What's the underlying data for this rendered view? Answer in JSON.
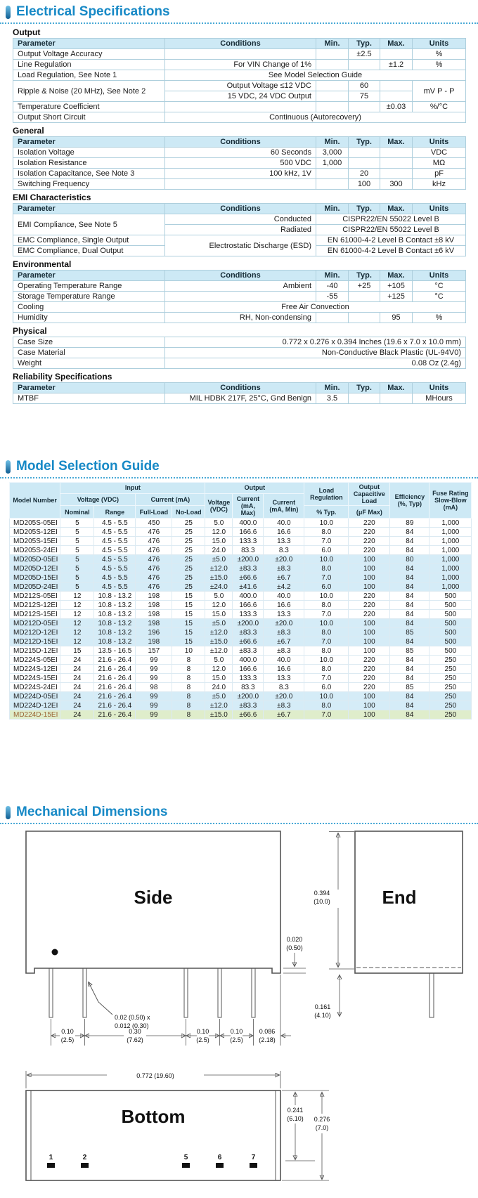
{
  "titles": {
    "electrical": "Electrical Specifications",
    "model_guide": "Model Selection Guide",
    "mechanical": "Mechanical Dimensions"
  },
  "spec_header": {
    "parameter": "Parameter",
    "conditions": "Conditions",
    "min": "Min.",
    "typ": "Typ.",
    "max": "Max.",
    "units": "Units"
  },
  "spec_tables": [
    {
      "label": "Output",
      "header": true,
      "rows": [
        [
          {
            "t": "Output Voltage Accuracy",
            "al": "l"
          },
          {
            "t": "",
            "al": "r"
          },
          {
            "t": "",
            "al": "c"
          },
          {
            "t": "±2.5",
            "al": "c"
          },
          {
            "t": "",
            "al": "c"
          },
          {
            "t": "%",
            "al": "c"
          }
        ],
        [
          {
            "t": "Line Regulation",
            "al": "l"
          },
          {
            "t": "For VIN Change of 1%",
            "al": "r"
          },
          {
            "t": "",
            "al": "c"
          },
          {
            "t": "",
            "al": "c"
          },
          {
            "t": "±1.2",
            "al": "c"
          },
          {
            "t": "%",
            "al": "c"
          }
        ],
        [
          {
            "t": "Load Regulation, See Note 1",
            "al": "l"
          },
          {
            "t": "See Model Selection Guide",
            "cs": 5,
            "al": "c"
          }
        ],
        [
          {
            "t": "Ripple & Noise (20 MHz), See Note 2",
            "rs": 2,
            "al": "l"
          },
          {
            "t": "Output Voltage ≤12 VDC",
            "al": "r"
          },
          {
            "t": "",
            "al": "c"
          },
          {
            "t": "60",
            "al": "c"
          },
          {
            "t": "",
            "al": "c"
          },
          {
            "t": "mV P - P",
            "rs": 2,
            "al": "c"
          }
        ],
        [
          {
            "t": "15 VDC, 24 VDC Output",
            "al": "r"
          },
          {
            "t": "",
            "al": "c"
          },
          {
            "t": "75",
            "al": "c"
          },
          {
            "t": "",
            "al": "c"
          }
        ],
        [
          {
            "t": "Temperature Coefficient",
            "al": "l"
          },
          {
            "t": "",
            "al": "r"
          },
          {
            "t": "",
            "al": "c"
          },
          {
            "t": "",
            "al": "c"
          },
          {
            "t": "±0.03",
            "al": "c"
          },
          {
            "t": "%/°C",
            "al": "c"
          }
        ],
        [
          {
            "t": "Output Short Circuit",
            "al": "l"
          },
          {
            "t": "Continuous (Autorecovery)",
            "cs": 5,
            "al": "c"
          }
        ]
      ]
    },
    {
      "label": "General",
      "header": true,
      "rows": [
        [
          {
            "t": "Isolation Voltage",
            "al": "l"
          },
          {
            "t": "60 Seconds",
            "al": "r"
          },
          {
            "t": "3,000",
            "al": "c"
          },
          {
            "t": "",
            "al": "c"
          },
          {
            "t": "",
            "al": "c"
          },
          {
            "t": "VDC",
            "al": "c"
          }
        ],
        [
          {
            "t": "Isolation Resistance",
            "al": "l"
          },
          {
            "t": "500 VDC",
            "al": "r"
          },
          {
            "t": "1,000",
            "al": "c"
          },
          {
            "t": "",
            "al": "c"
          },
          {
            "t": "",
            "al": "c"
          },
          {
            "t": "MΩ",
            "al": "c"
          }
        ],
        [
          {
            "t": "Isolation Capacitance, See Note 3",
            "al": "l"
          },
          {
            "t": "100 kHz, 1V",
            "al": "r"
          },
          {
            "t": "",
            "al": "c"
          },
          {
            "t": "20",
            "al": "c"
          },
          {
            "t": "",
            "al": "c"
          },
          {
            "t": "pF",
            "al": "c"
          }
        ],
        [
          {
            "t": "Switching Frequency",
            "al": "l"
          },
          {
            "t": "",
            "al": "r"
          },
          {
            "t": "",
            "al": "c"
          },
          {
            "t": "100",
            "al": "c"
          },
          {
            "t": "300",
            "al": "c"
          },
          {
            "t": "kHz",
            "al": "c"
          }
        ]
      ]
    },
    {
      "label": "EMI Characteristics",
      "header": true,
      "rows": [
        [
          {
            "t": "EMI Compliance, See Note 5",
            "rs": 2,
            "al": "l"
          },
          {
            "t": "Conducted",
            "al": "r"
          },
          {
            "t": "CISPR22/EN 55022 Level B",
            "cs": 4,
            "al": "c"
          }
        ],
        [
          {
            "t": "Radiated",
            "al": "r"
          },
          {
            "t": "CISPR22/EN 55022 Level B",
            "cs": 4,
            "al": "c"
          }
        ],
        [
          {
            "t": "EMC Compliance, Single Output",
            "al": "l"
          },
          {
            "t": "Electrostatic Discharge (ESD)",
            "rs": 2,
            "al": "r"
          },
          {
            "t": "EN 61000-4-2 Level B Contact ±8 kV",
            "cs": 4,
            "al": "c"
          }
        ],
        [
          {
            "t": "EMC Compliance, Dual Output",
            "al": "l"
          },
          {
            "t": "EN 61000-4-2 Level B Contact ±6 kV",
            "cs": 4,
            "al": "c"
          }
        ]
      ]
    },
    {
      "label": "Environmental",
      "header": true,
      "rows": [
        [
          {
            "t": "Operating Temperature Range",
            "al": "l"
          },
          {
            "t": "Ambient",
            "al": "r"
          },
          {
            "t": "-40",
            "al": "c"
          },
          {
            "t": "+25",
            "al": "c"
          },
          {
            "t": "+105",
            "al": "c"
          },
          {
            "t": "°C",
            "al": "c"
          }
        ],
        [
          {
            "t": "Storage Temperature Range",
            "al": "l"
          },
          {
            "t": "",
            "al": "r"
          },
          {
            "t": "-55",
            "al": "c"
          },
          {
            "t": "",
            "al": "c"
          },
          {
            "t": "+125",
            "al": "c"
          },
          {
            "t": "°C",
            "al": "c"
          }
        ],
        [
          {
            "t": "Cooling",
            "al": "l"
          },
          {
            "t": "Free Air Convection",
            "cs": 5,
            "al": "c"
          }
        ],
        [
          {
            "t": "Humidity",
            "al": "l"
          },
          {
            "t": "RH, Non-condensing",
            "al": "r"
          },
          {
            "t": "",
            "al": "c"
          },
          {
            "t": "",
            "al": "c"
          },
          {
            "t": "95",
            "al": "c"
          },
          {
            "t": "%",
            "al": "c"
          }
        ]
      ]
    },
    {
      "label": "Physical",
      "header": false,
      "rows": [
        [
          {
            "t": "Case Size",
            "al": "l"
          },
          {
            "t": "0.772 x 0.276 x 0.394 Inches (19.6 x 7.0 x 10.0 mm)",
            "cs": 5,
            "al": "r"
          }
        ],
        [
          {
            "t": "Case Material",
            "al": "l"
          },
          {
            "t": "Non-Conductive  Black Plastic (UL-94V0)",
            "cs": 5,
            "al": "r"
          }
        ],
        [
          {
            "t": "Weight",
            "al": "l"
          },
          {
            "t": "0.08 Oz (2.4g)",
            "cs": 5,
            "al": "r"
          }
        ]
      ]
    },
    {
      "label": "Reliability Specifications",
      "header": true,
      "rows": [
        [
          {
            "t": "MTBF",
            "al": "l"
          },
          {
            "t": "MIL HDBK 217F, 25°C, Gnd Benign",
            "al": "r"
          },
          {
            "t": "3.5",
            "al": "c"
          },
          {
            "t": "",
            "al": "c"
          },
          {
            "t": "",
            "al": "c"
          },
          {
            "t": "MHours",
            "al": "c"
          }
        ]
      ]
    }
  ],
  "model_table": {
    "header": {
      "model": "Model Number",
      "input": "Input",
      "output": "Output",
      "voltage_vdc": "Voltage (VDC)",
      "current_ma": "Current (mA)",
      "nominal": "Nominal",
      "range": "Range",
      "full_load": "Full-Load",
      "no_load": "No-Load",
      "out_voltage": "Voltage (VDC)",
      "out_current_max": "Current (mA, Max)",
      "out_current_min": "Current (mA, Min)",
      "load_reg": "Load Regulation",
      "load_reg_sub": "% Typ.",
      "cap_load": "Output Capacitive Load",
      "cap_load_sub": "(μF Max)",
      "efficiency": "Efficiency (%, Typ)",
      "fuse": "Fuse Rating Slow-Blow (mA)"
    },
    "rows": [
      {
        "model": "MD205S-05EI",
        "cells": [
          "5",
          "4.5 - 5.5",
          "450",
          "25",
          "5.0",
          "400.0",
          "40.0",
          "10.0",
          "220",
          "89",
          "1,000"
        ],
        "tone": "w"
      },
      {
        "model": "MD205S-12EI",
        "cells": [
          "5",
          "4.5 - 5.5",
          "476",
          "25",
          "12.0",
          "166.6",
          "16.6",
          "8.0",
          "220",
          "84",
          "1,000"
        ],
        "tone": "w"
      },
      {
        "model": "MD205S-15EI",
        "cells": [
          "5",
          "4.5 - 5.5",
          "476",
          "25",
          "15.0",
          "133.3",
          "13.3",
          "7.0",
          "220",
          "84",
          "1,000"
        ],
        "tone": "w"
      },
      {
        "model": "MD205S-24EI",
        "cells": [
          "5",
          "4.5 - 5.5",
          "476",
          "25",
          "24.0",
          "83.3",
          "8.3",
          "6.0",
          "220",
          "84",
          "1,000"
        ],
        "tone": "w"
      },
      {
        "model": "MD205D-05EI",
        "cells": [
          "5",
          "4.5 - 5.5",
          "476",
          "25",
          "±5.0",
          "±200.0",
          "±20.0",
          "10.0",
          "100",
          "80",
          "1,000"
        ],
        "tone": "b"
      },
      {
        "model": "MD205D-12EI",
        "cells": [
          "5",
          "4.5 - 5.5",
          "476",
          "25",
          "±12.0",
          "±83.3",
          "±8.3",
          "8.0",
          "100",
          "84",
          "1,000"
        ],
        "tone": "b"
      },
      {
        "model": "MD205D-15EI",
        "cells": [
          "5",
          "4.5 - 5.5",
          "476",
          "25",
          "±15.0",
          "±66.6",
          "±6.7",
          "7.0",
          "100",
          "84",
          "1,000"
        ],
        "tone": "b"
      },
      {
        "model": "MD205D-24EI",
        "cells": [
          "5",
          "4.5 - 5.5",
          "476",
          "25",
          "±24.0",
          "±41.6",
          "±4.2",
          "6.0",
          "100",
          "84",
          "1,000"
        ],
        "tone": "b"
      },
      {
        "model": "MD212S-05EI",
        "cells": [
          "12",
          "10.8 - 13.2",
          "198",
          "15",
          "5.0",
          "400.0",
          "40.0",
          "10.0",
          "220",
          "84",
          "500"
        ],
        "tone": "w"
      },
      {
        "model": "MD212S-12EI",
        "cells": [
          "12",
          "10.8 - 13.2",
          "198",
          "15",
          "12.0",
          "166.6",
          "16.6",
          "8.0",
          "220",
          "84",
          "500"
        ],
        "tone": "w"
      },
      {
        "model": "MD212S-15EI",
        "cells": [
          "12",
          "10.8 - 13.2",
          "198",
          "15",
          "15.0",
          "133.3",
          "13.3",
          "7.0",
          "220",
          "84",
          "500"
        ],
        "tone": "w"
      },
      {
        "model": "MD212D-05EI",
        "cells": [
          "12",
          "10.8 - 13.2",
          "198",
          "15",
          "±5.0",
          "±200.0",
          "±20.0",
          "10.0",
          "100",
          "84",
          "500"
        ],
        "tone": "b"
      },
      {
        "model": "MD212D-12EI",
        "cells": [
          "12",
          "10.8 - 13.2",
          "196",
          "15",
          "±12.0",
          "±83.3",
          "±8.3",
          "8.0",
          "100",
          "85",
          "500"
        ],
        "tone": "b"
      },
      {
        "model": "MD212D-15EI",
        "cells": [
          "12",
          "10.8 - 13.2",
          "198",
          "15",
          "±15.0",
          "±66.6",
          "±6.7",
          "7.0",
          "100",
          "84",
          "500"
        ],
        "tone": "b"
      },
      {
        "model": "MD215D-12EI",
        "cells": [
          "15",
          "13.5 - 16.5",
          "157",
          "10",
          "±12.0",
          "±83.3",
          "±8.3",
          "8.0",
          "100",
          "85",
          "500"
        ],
        "tone": "w"
      },
      {
        "model": "MD224S-05EI",
        "cells": [
          "24",
          "21.6 - 26.4",
          "99",
          "8",
          "5.0",
          "400.0",
          "40.0",
          "10.0",
          "220",
          "84",
          "250"
        ],
        "tone": "w"
      },
      {
        "model": "MD224S-12EI",
        "cells": [
          "24",
          "21.6 - 26.4",
          "99",
          "8",
          "12.0",
          "166.6",
          "16.6",
          "8.0",
          "220",
          "84",
          "250"
        ],
        "tone": "w"
      },
      {
        "model": "MD224S-15EI",
        "cells": [
          "24",
          "21.6 - 26.4",
          "99",
          "8",
          "15.0",
          "133.3",
          "13.3",
          "7.0",
          "220",
          "84",
          "250"
        ],
        "tone": "w"
      },
      {
        "model": "MD224S-24EI",
        "cells": [
          "24",
          "21.6 - 26.4",
          "98",
          "8",
          "24.0",
          "83.3",
          "8.3",
          "6.0",
          "220",
          "85",
          "250"
        ],
        "tone": "w"
      },
      {
        "model": "MD224D-05EI",
        "cells": [
          "24",
          "21.6 - 26.4",
          "99",
          "8",
          "±5.0",
          "±200.0",
          "±20.0",
          "10.0",
          "100",
          "84",
          "250"
        ],
        "tone": "b"
      },
      {
        "model": "MD224D-12EI",
        "cells": [
          "24",
          "21.6 - 26.4",
          "99",
          "8",
          "±12.0",
          "±83.3",
          "±8.3",
          "8.0",
          "100",
          "84",
          "250"
        ],
        "tone": "b"
      },
      {
        "model": "MD224D-15EI",
        "cells": [
          "24",
          "21.6 - 26.4",
          "99",
          "8",
          "±15.0",
          "±66.6",
          "±6.7",
          "7.0",
          "100",
          "84",
          "250"
        ],
        "tone": "g"
      }
    ]
  },
  "mechanical": {
    "side_label": "Side",
    "end_label": "End",
    "bottom_label": "Bottom",
    "dim_height": "0.394",
    "dim_height_mm": "(10.0)",
    "dim_standoff": "0.020",
    "dim_standoff_mm": "(0.50)",
    "dim_pin_len": "0.161",
    "dim_pin_len_mm": "(4.10)",
    "pin_note_1": "0.02 (0.50) x",
    "pin_note_2": "0.012 (0.30)",
    "dim_p1": "0.10",
    "dim_p1_mm": "(2.5)",
    "dim_p2": "0.30",
    "dim_p2_mm": "(7.62)",
    "dim_p3": "0.10",
    "dim_p3_mm": "(2.5)",
    "dim_p4": "0.10",
    "dim_p4_mm": "(2.5)",
    "dim_p5": "0.086",
    "dim_p5_mm": "(2.18)",
    "dim_width": "0.772 (19.60)",
    "dim_depth1": "0.241",
    "dim_depth1_mm": "(6.10)",
    "dim_depth2": "0.276",
    "dim_depth2_mm": "(7.0)",
    "pins": [
      "1",
      "2",
      "5",
      "6",
      "7"
    ]
  },
  "colors": {
    "title_blue": "#1789c6",
    "header_bg": "#cde9f5",
    "row_blue": "#d5ecf7",
    "row_green": "#dfedcb",
    "border": "#aecfdd"
  }
}
